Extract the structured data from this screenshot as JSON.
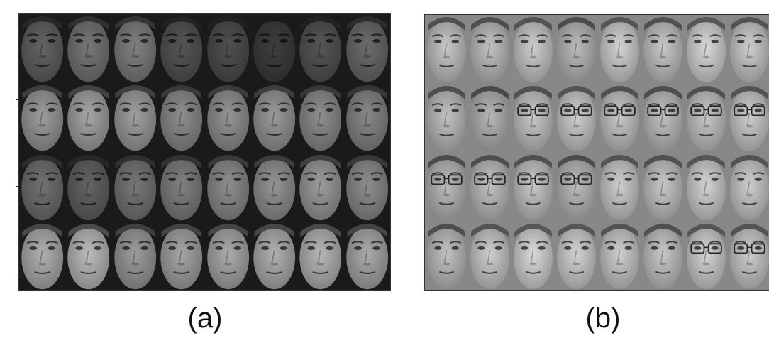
{
  "figure": {
    "panel_a": {
      "caption": "(a)",
      "rows": 4,
      "cols": 8,
      "background_color": "#1a1a1a",
      "tiles": [
        [
          0.35,
          0.42,
          0.45,
          0.3,
          0.28,
          0.22,
          0.3,
          0.38
        ],
        [
          0.55,
          0.58,
          0.56,
          0.5,
          0.52,
          0.54,
          0.5,
          0.48
        ],
        [
          0.4,
          0.35,
          0.42,
          0.45,
          0.5,
          0.52,
          0.55,
          0.5
        ],
        [
          0.62,
          0.66,
          0.55,
          0.58,
          0.6,
          0.62,
          0.64,
          0.6
        ]
      ]
    },
    "panel_b": {
      "caption": "(b)",
      "rows": 4,
      "cols": 8,
      "background_color": "#888888",
      "tiles": [
        [
          0.7,
          0.68,
          0.72,
          0.66,
          0.74,
          0.7,
          0.76,
          0.72
        ],
        [
          0.68,
          0.64,
          0.7,
          0.72,
          0.7,
          0.68,
          0.7,
          0.72
        ],
        [
          0.66,
          0.68,
          0.7,
          0.66,
          0.72,
          0.7,
          0.74,
          0.72
        ],
        [
          0.68,
          0.72,
          0.76,
          0.74,
          0.72,
          0.7,
          0.74,
          0.72
        ]
      ],
      "glasses": [
        [
          false,
          false,
          false,
          false,
          false,
          false,
          false,
          false
        ],
        [
          false,
          false,
          true,
          true,
          true,
          true,
          true,
          true
        ],
        [
          true,
          true,
          true,
          true,
          false,
          false,
          false,
          false
        ],
        [
          false,
          false,
          false,
          false,
          false,
          false,
          true,
          true
        ]
      ]
    }
  }
}
